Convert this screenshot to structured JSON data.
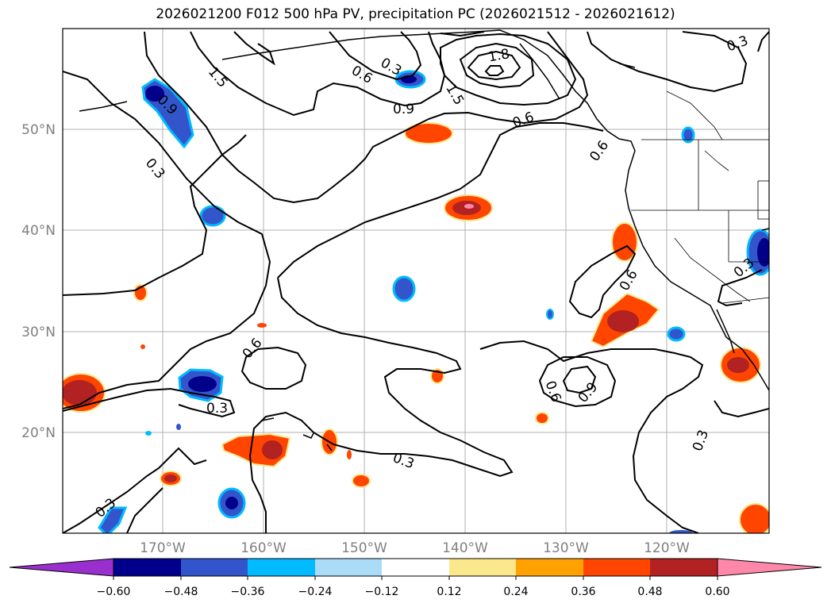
{
  "title": "2026021200 F012 500 hPa PV, precipitation PC (2026021512 - 2026021612)",
  "axes": {
    "lat_labels": [
      "50°N",
      "40°N",
      "30°N",
      "20°N"
    ],
    "lon_labels": [
      "170°W",
      "160°W",
      "150°W",
      "140°W",
      "130°W",
      "120°W"
    ]
  },
  "contour_labels": [
    "1.8",
    "0.6",
    "0.3",
    "1.5",
    "0.9",
    "0.6",
    "1.5",
    "0.9",
    "0.3",
    "0.3",
    "0.3",
    "0.6",
    "0.6",
    "0.6",
    "0.9",
    "0.3",
    "0.3",
    "0.3",
    "0.6",
    "0.3"
  ],
  "colorbar": {
    "ticks": [
      "−0.60",
      "−0.48",
      "−0.36",
      "−0.24",
      "−0.12",
      "0.12",
      "0.24",
      "0.36",
      "0.48",
      "0.60"
    ],
    "colors": [
      "#9a2fd0",
      "#00008b",
      "#3355cc",
      "#00bbff",
      "#aadcf8",
      "#ffffff",
      "#fbe88c",
      "#ffa200",
      "#ff4500",
      "#b22222",
      "#ff88aa"
    ]
  },
  "colors": {
    "pos_light": "#fbe88c",
    "pos_mid": "#ffa200",
    "pos_strong": "#ff4500",
    "pos_dark": "#b22222",
    "pos_max": "#ff88aa",
    "neg_light": "#aadcf8",
    "neg_mid": "#00bbff",
    "neg_strong": "#3355cc",
    "neg_dark": "#00008b"
  }
}
